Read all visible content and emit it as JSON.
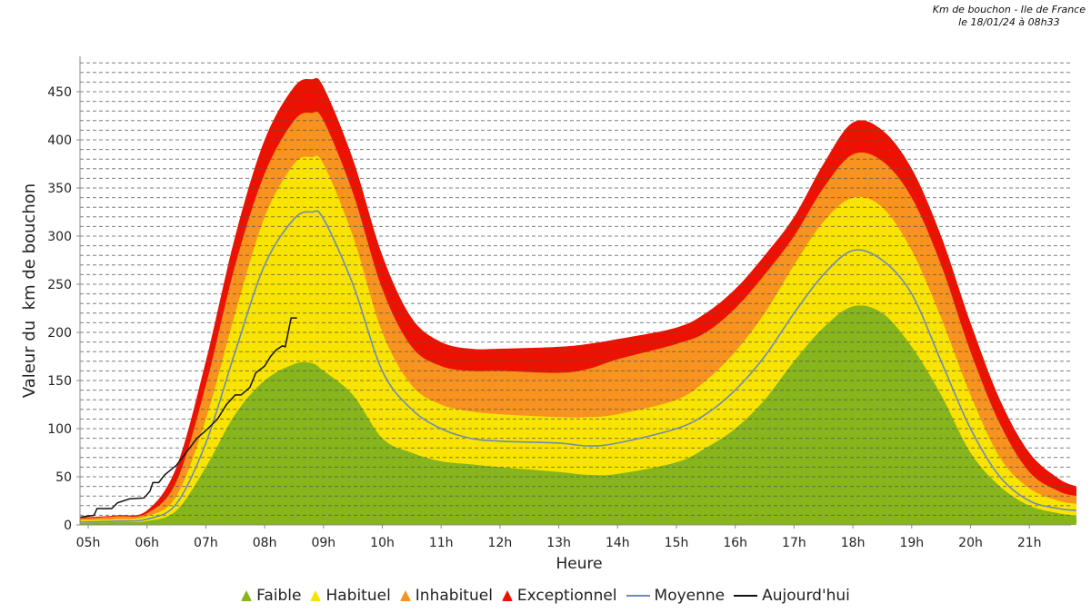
{
  "chart_data": {
    "type": "area",
    "title": "Km de bouchon - Ile de France",
    "subtitle": "le 18/01/24 à 08h33",
    "xlabel": "Heure",
    "ylabel": "Valeur du  km de bouchon",
    "xlim": [
      4.87,
      21.8
    ],
    "ylim": [
      0,
      488
    ],
    "grid": true,
    "legend_position": "bottom",
    "x_ticks": [
      "05h",
      "06h",
      "07h",
      "08h",
      "09h",
      "10h",
      "11h",
      "12h",
      "13h",
      "14h",
      "15h",
      "16h",
      "17h",
      "18h",
      "19h",
      "20h",
      "21h"
    ],
    "y_ticks": [
      0,
      50,
      100,
      150,
      200,
      250,
      300,
      350,
      400,
      450
    ],
    "x": [
      4.87,
      5,
      5.5,
      6,
      6.5,
      7,
      7.5,
      8,
      8.5,
      8.8,
      9,
      9.5,
      10,
      10.5,
      11,
      11.5,
      12,
      13,
      13.5,
      14,
      15,
      15.5,
      16,
      16.5,
      17,
      17.5,
      18,
      18.5,
      19,
      19.5,
      20,
      20.5,
      21,
      21.5,
      21.8
    ],
    "series": [
      {
        "name": "Exceptionnel",
        "color": "#ee1100",
        "values": [
          8,
          8,
          10,
          15,
          60,
          170,
          300,
          400,
          455,
          463,
          455,
          380,
          280,
          215,
          190,
          183,
          183,
          185,
          188,
          193,
          205,
          220,
          245,
          280,
          320,
          375,
          418,
          410,
          370,
          300,
          210,
          130,
          75,
          48,
          40
        ]
      },
      {
        "name": "Inhabituel",
        "color": "#f7931e",
        "values": [
          7,
          7,
          9,
          12,
          45,
          145,
          270,
          365,
          420,
          428,
          420,
          345,
          245,
          185,
          165,
          160,
          160,
          158,
          162,
          172,
          188,
          200,
          225,
          260,
          300,
          350,
          385,
          378,
          340,
          270,
          180,
          105,
          55,
          35,
          30
        ]
      },
      {
        "name": "Habituel",
        "color": "#f8e400",
        "values": [
          5,
          5,
          6,
          9,
          30,
          110,
          220,
          320,
          375,
          382,
          375,
          300,
          200,
          145,
          125,
          118,
          115,
          112,
          112,
          115,
          130,
          150,
          180,
          220,
          270,
          315,
          340,
          330,
          285,
          215,
          135,
          70,
          38,
          25,
          22
        ]
      },
      {
        "name": "Faible",
        "color": "#86b51c",
        "values": [
          2,
          2,
          3,
          4,
          15,
          60,
          115,
          150,
          167,
          168,
          160,
          135,
          90,
          75,
          66,
          63,
          60,
          55,
          52,
          53,
          65,
          80,
          100,
          130,
          170,
          205,
          227,
          220,
          185,
          135,
          75,
          40,
          20,
          12,
          10
        ]
      }
    ],
    "moyenne": {
      "name": "Moyenne",
      "color": "#6f8bb5",
      "values": [
        3,
        3,
        4,
        6,
        22,
        85,
        180,
        270,
        318,
        325,
        318,
        250,
        160,
        120,
        100,
        90,
        87,
        85,
        82,
        85,
        100,
        115,
        140,
        175,
        220,
        260,
        285,
        275,
        240,
        170,
        100,
        50,
        25,
        17,
        15
      ]
    },
    "aujourdhui": {
      "name": "Aujourd'hui",
      "color": "#111111",
      "x": [
        4.87,
        5.1,
        5.15,
        5.4,
        5.5,
        5.7,
        5.95,
        6.05,
        6.1,
        6.2,
        6.3,
        6.5,
        6.7,
        6.85,
        7,
        7.2,
        7.35,
        7.5,
        7.6,
        7.75,
        7.85,
        8,
        8.1,
        8.2,
        8.3,
        8.35,
        8.45,
        8.55
      ],
      "values": [
        8,
        10,
        17,
        17,
        23,
        27,
        28,
        35,
        44,
        44,
        52,
        62,
        78,
        90,
        98,
        110,
        125,
        135,
        135,
        143,
        158,
        165,
        175,
        182,
        186,
        185,
        215,
        215
      ]
    }
  },
  "legend": {
    "faible": "Faible",
    "habituel": "Habituel",
    "inhabituel": "Inhabituel",
    "exceptionnel": "Exceptionnel",
    "moyenne": "Moyenne",
    "aujourdhui": "Aujourd'hui"
  }
}
